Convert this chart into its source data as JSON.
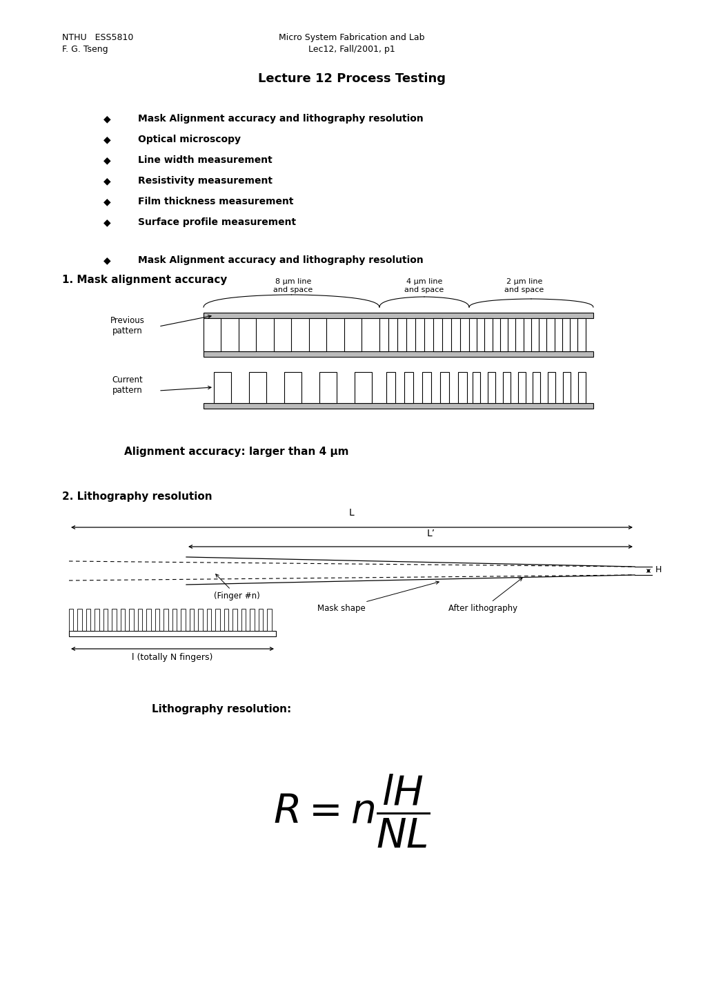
{
  "bg_color": "#ffffff",
  "header_left_line1": "NTHU   ESS5810",
  "header_left_line2": "F. G. Tseng",
  "header_center_line1": "Micro System Fabrication and Lab",
  "header_center_line2": "Lec12, Fall/2001, p1",
  "main_title": "Lecture 12 Process Testing",
  "bullets": [
    "Mask Alignment accuracy and lithography resolution",
    "Optical microscopy",
    "Line width measurement",
    "Resistivity measurement",
    "Film thickness measurement",
    "Surface profile measurement"
  ],
  "section_bullet": "Mask Alignment accuracy and lithography resolution",
  "section1_title": "1. Mask alignment accuracy",
  "label_8um": "8 μm line\nand space",
  "label_4um": "4 μm line\nand space",
  "label_2um": "2 μm line\nand space",
  "label_previous": "Previous\npattern",
  "label_current": "Current\npattern",
  "alignment_note": "Alignment accuracy: larger than 4 μm",
  "section2_title": "2. Lithography resolution",
  "label_L": "L",
  "label_Lprime": "L’",
  "label_H": "H",
  "label_finger": "(Finger #n)",
  "label_mask": "Mask shape",
  "label_litho": "After lithography",
  "label_l": "l (totally N fingers)",
  "formula_label": "Lithography resolution:",
  "formula": "R = n\\frac{lH}{NL}"
}
